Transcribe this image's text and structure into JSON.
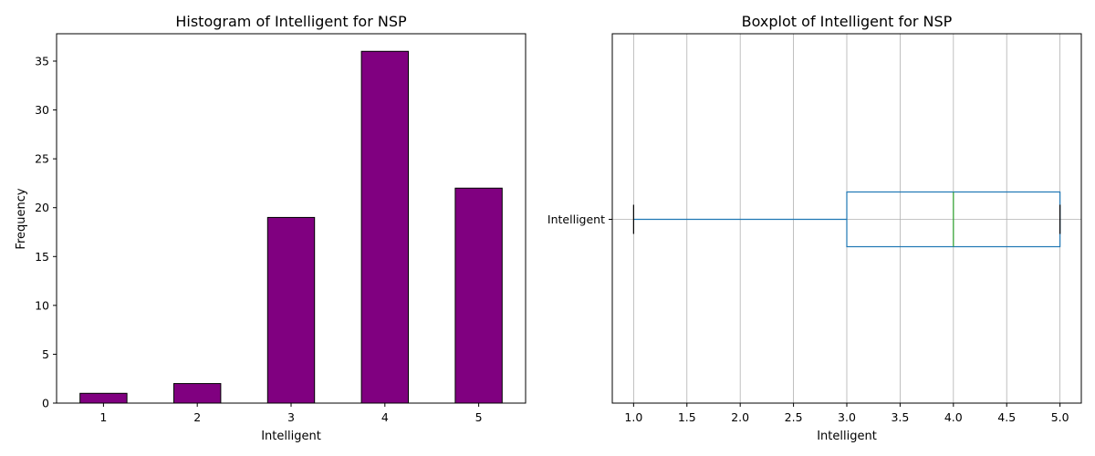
{
  "chart_data": [
    {
      "type": "bar",
      "title": "Histogram of Intelligent for NSP",
      "xlabel": "Intelligent",
      "ylabel": "Frequency",
      "categories": [
        "1",
        "2",
        "3",
        "4",
        "5"
      ],
      "values": [
        1,
        2,
        19,
        36,
        22
      ],
      "ylim": [
        0,
        37.8
      ],
      "yticks": [
        0,
        5,
        10,
        15,
        20,
        25,
        30,
        35
      ],
      "grid": false,
      "colors": {
        "bar": "#800080",
        "edge": "#000000"
      }
    },
    {
      "type": "boxplot",
      "title": "Boxplot of Intelligent for NSP",
      "xlabel": "Intelligent",
      "category": "Intelligent",
      "orientation": "horizontal",
      "stats": {
        "whisker_low": 1,
        "q1": 3,
        "median": 4,
        "q3": 5,
        "whisker_high": 5
      },
      "xlim": [
        0.8,
        5.2
      ],
      "xticks": [
        1.0,
        1.5,
        2.0,
        2.5,
        3.0,
        3.5,
        4.0,
        4.5,
        5.0
      ],
      "grid": true,
      "colors": {
        "box": "#1f77b4",
        "median": "#2ca02c",
        "cap": "#000000",
        "grid": "#b0b0b0"
      }
    }
  ]
}
